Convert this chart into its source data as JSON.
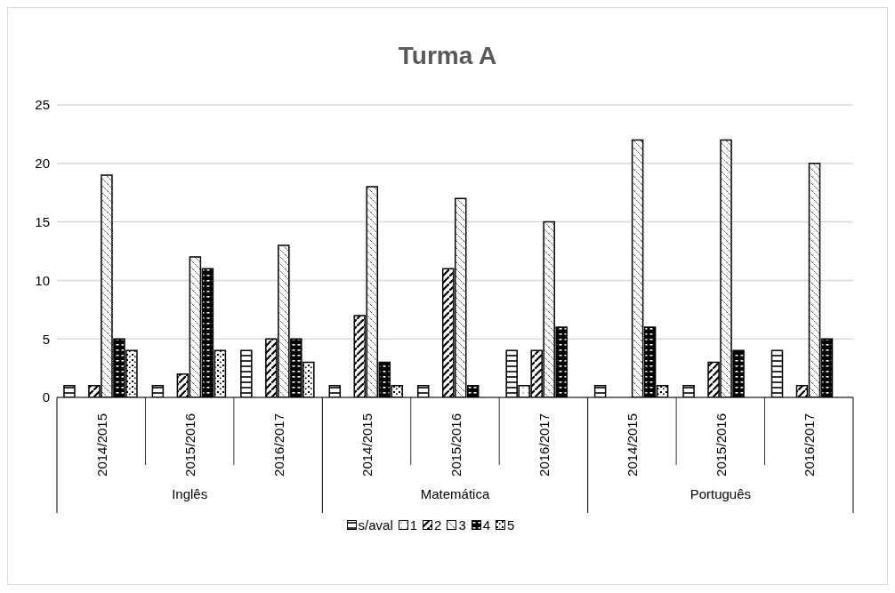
{
  "chart_data": {
    "type": "bar",
    "title": "Turma A",
    "categories": [
      "2014/2015",
      "2015/2016",
      "2016/2017",
      "2014/2015",
      "2015/2016",
      "2016/2017",
      "2014/2015",
      "2015/2016",
      "2016/2017"
    ],
    "annotations": [
      "Inglês",
      "Matemática",
      "Português"
    ],
    "series": [
      {
        "name": "s/aval",
        "color": "#000000",
        "values": [
          1,
          1,
          4,
          1,
          1,
          4,
          1,
          1,
          4
        ]
      },
      {
        "name": "1",
        "color": "#000000",
        "values": [
          null,
          null,
          null,
          null,
          null,
          1,
          null,
          null,
          null
        ]
      },
      {
        "name": "2",
        "color": "#000000",
        "values": [
          1,
          2,
          5,
          7,
          11,
          4,
          null,
          3,
          1
        ]
      },
      {
        "name": "3",
        "color": "#000000",
        "values": [
          19,
          12,
          13,
          18,
          17,
          15,
          22,
          22,
          20
        ]
      },
      {
        "name": "4",
        "color": "#000000",
        "values": [
          5,
          11,
          5,
          3,
          1,
          6,
          6,
          4,
          5
        ]
      },
      {
        "name": "5",
        "color": "#000000",
        "values": [
          4,
          4,
          3,
          1,
          null,
          null,
          1,
          null,
          null
        ]
      }
    ],
    "ylim": [
      0,
      25
    ],
    "yticks": [
      0,
      5,
      10,
      15,
      20,
      25
    ],
    "grid": "y",
    "legend": "bottom"
  }
}
